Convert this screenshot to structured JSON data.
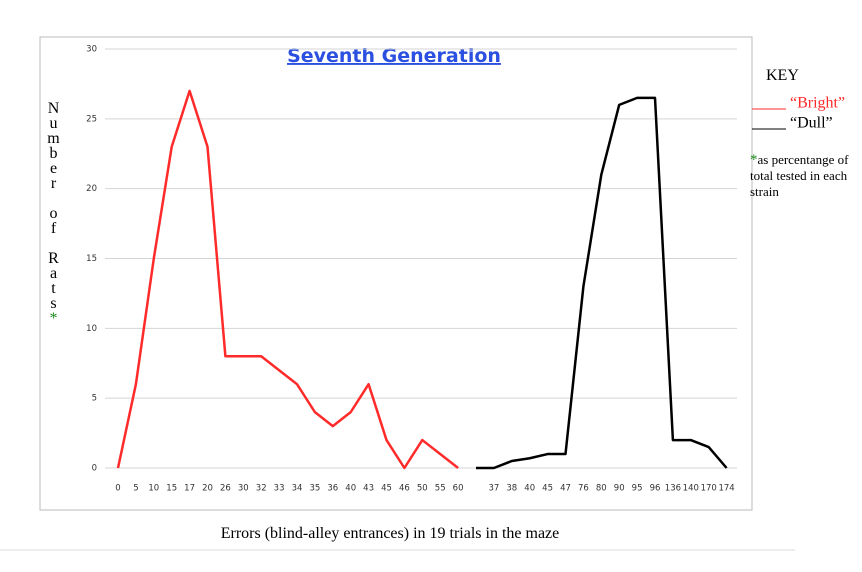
{
  "chart_data": {
    "type": "line",
    "title": "Seventh Generation",
    "x_label": "Errors (blind-alley entrances) in 19 trials in the maze",
    "y_label": "Number of Rats",
    "y_label_marker": "*",
    "legend_title": "KEY",
    "note_marker": "*",
    "note": "as percentange of total tested in each strain",
    "categories": [
      "0",
      "5",
      "10",
      "15",
      "17",
      "20",
      "26",
      "30",
      "32",
      "33",
      "34",
      "35",
      "36",
      "40",
      "43",
      "45",
      "46",
      "50",
      "55",
      "60",
      null,
      "37",
      "38",
      "40",
      "45",
      "47",
      "76",
      "80",
      "90",
      "95",
      "96",
      "136",
      "140",
      "170",
      "174"
    ],
    "series": [
      {
        "name": "“Bright”",
        "color": "#ff2a2a",
        "values": [
          0,
          6,
          15,
          23,
          27,
          23,
          8,
          8,
          8,
          7,
          6,
          4,
          3,
          4,
          6,
          2,
          0,
          2,
          1,
          0,
          null,
          null,
          null,
          null,
          null,
          null,
          null,
          null,
          null,
          null,
          null,
          null,
          null,
          null,
          null
        ]
      },
      {
        "name": "“Dull”",
        "color": "#000000",
        "values": [
          null,
          null,
          null,
          null,
          null,
          null,
          null,
          null,
          null,
          null,
          null,
          null,
          null,
          null,
          null,
          null,
          null,
          null,
          null,
          null,
          0,
          0,
          0.5,
          0.7,
          1,
          1,
          13,
          21,
          26,
          26.5,
          26.5,
          2,
          2,
          1.5,
          0
        ]
      }
    ],
    "ylim": [
      0,
      30
    ],
    "yticks": [
      0,
      5,
      10,
      15,
      20,
      25,
      30
    ],
    "grid": true
  }
}
